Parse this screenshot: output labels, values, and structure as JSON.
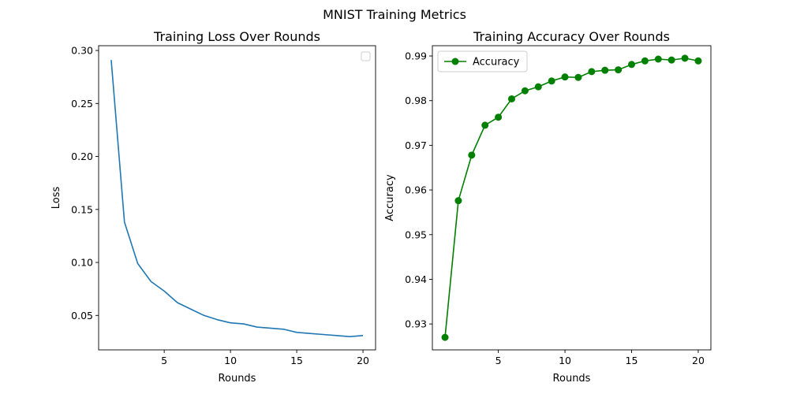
{
  "figure": {
    "title": "MNIST Training Metrics"
  },
  "chart_data": [
    {
      "type": "line",
      "title": "Training Loss Over Rounds",
      "xlabel": "Rounds",
      "ylabel": "Loss",
      "xlim": [
        0.05,
        20.95
      ],
      "ylim": [
        0.0175,
        0.3045
      ],
      "xticks": [
        5,
        10,
        15,
        20
      ],
      "yticks": [
        0.05,
        0.1,
        0.15,
        0.2,
        0.25,
        0.3
      ],
      "grid": false,
      "legend": "top-right (empty)",
      "series": [
        {
          "color": "#1f77b4",
          "marker": "none",
          "x": [
            1,
            2,
            3,
            4,
            5,
            6,
            7,
            8,
            9,
            10,
            11,
            12,
            13,
            14,
            15,
            16,
            17,
            18,
            19,
            20
          ],
          "values": [
            0.291,
            0.138,
            0.099,
            0.082,
            0.073,
            0.062,
            0.056,
            0.05,
            0.046,
            0.043,
            0.042,
            0.039,
            0.038,
            0.037,
            0.034,
            0.033,
            0.032,
            0.031,
            0.03,
            0.031
          ]
        }
      ]
    },
    {
      "type": "line",
      "title": "Training Accuracy Over Rounds",
      "xlabel": "Rounds",
      "ylabel": "Accuracy",
      "xlim": [
        0.05,
        20.95
      ],
      "ylim": [
        0.9242,
        0.9923
      ],
      "xticks": [
        5,
        10,
        15,
        20
      ],
      "yticks": [
        0.93,
        0.94,
        0.95,
        0.96,
        0.97,
        0.98,
        0.99
      ],
      "grid": false,
      "legend": "top-left",
      "series": [
        {
          "name": "Accuracy",
          "color": "#008000",
          "marker": "circle",
          "x": [
            1,
            2,
            3,
            4,
            5,
            6,
            7,
            8,
            9,
            10,
            11,
            12,
            13,
            14,
            15,
            16,
            17,
            18,
            19,
            20
          ],
          "values": [
            0.927,
            0.9576,
            0.9678,
            0.9745,
            0.9763,
            0.9804,
            0.9822,
            0.9831,
            0.9844,
            0.9853,
            0.9852,
            0.9865,
            0.9868,
            0.9869,
            0.9881,
            0.9889,
            0.9893,
            0.9891,
            0.9895,
            0.9889
          ]
        }
      ]
    }
  ]
}
